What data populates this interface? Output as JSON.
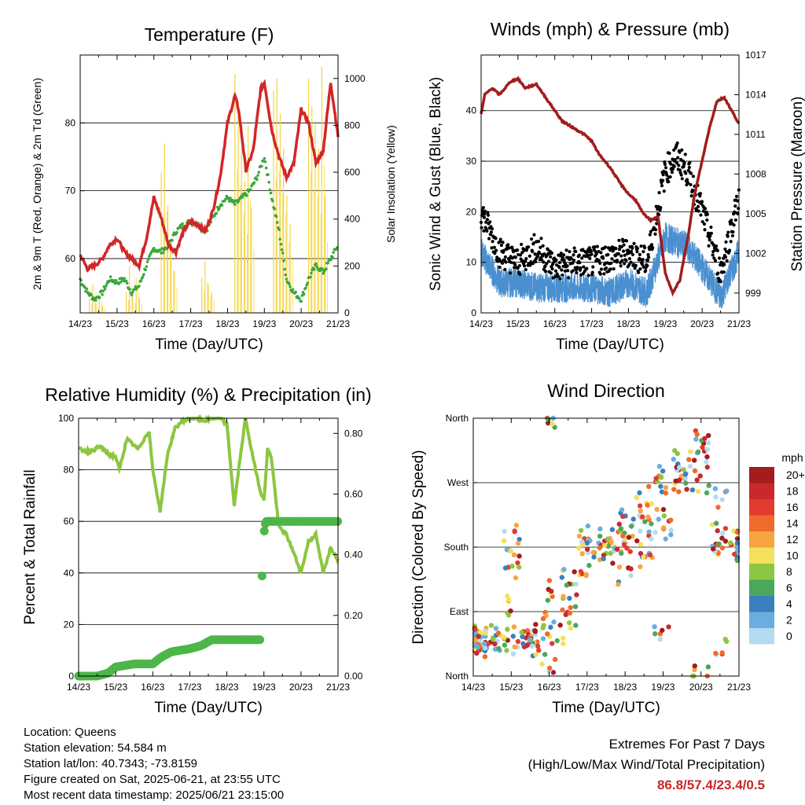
{
  "chart_data": [
    {
      "type": "line",
      "title": "Temperature (F)",
      "xlabel": "Time (Day/UTC)",
      "ylabel_left": "2m & 9m T (Red, Orange) & 2m Td (Green)",
      "ylabel_right": "Solar Insolation (Yellow)",
      "x_ticks": [
        "14/23",
        "15/23",
        "16/23",
        "17/23",
        "18/23",
        "19/23",
        "20/23",
        "21/23"
      ],
      "ylim_left": [
        52,
        90
      ],
      "y_ticks_left": [
        60,
        70,
        80
      ],
      "ylim_right": [
        0,
        1100
      ],
      "y_ticks_right": [
        0,
        200,
        400,
        600,
        800,
        1000
      ],
      "grid": true,
      "colors": {
        "temp": "#d32626",
        "dewpoint": "#3aa83a",
        "solar": "#f5d442"
      },
      "series": [
        {
          "name": "2m T",
          "axis": "left",
          "x": [
            0,
            0.2,
            0.4,
            0.6,
            0.8,
            1.0,
            1.2,
            1.4,
            1.6,
            1.8,
            2.0,
            2.2,
            2.4,
            2.6,
            2.8,
            3.0,
            3.2,
            3.4,
            3.6,
            3.8,
            4.0,
            4.2,
            4.3,
            4.5,
            4.7,
            4.9,
            5.0,
            5.2,
            5.4,
            5.6,
            5.8,
            6.0,
            6.2,
            6.4,
            6.6,
            6.8,
            7.0
          ],
          "values": [
            60.5,
            58.5,
            59,
            60,
            62,
            63,
            61,
            60,
            59,
            63,
            69,
            66,
            62,
            61,
            64,
            65.5,
            65,
            64,
            67,
            72,
            80,
            84,
            82,
            73,
            76,
            85,
            86,
            79,
            75,
            72,
            74,
            82,
            80,
            74,
            76,
            86,
            78
          ]
        },
        {
          "name": "2m Td",
          "axis": "left",
          "x": [
            0,
            0.2,
            0.4,
            0.6,
            0.8,
            1.0,
            1.2,
            1.4,
            1.6,
            1.8,
            2.0,
            2.2,
            2.4,
            2.6,
            2.8,
            3.0,
            3.2,
            3.4,
            3.6,
            3.8,
            4.0,
            4.2,
            4.4,
            4.6,
            4.8,
            5.0,
            5.2,
            5.4,
            5.6,
            5.8,
            6.0,
            6.2,
            6.4,
            6.6,
            6.8,
            7.0
          ],
          "values": [
            57,
            55,
            54,
            55,
            57,
            56.5,
            57,
            55,
            56,
            59,
            61.5,
            61,
            62,
            64,
            65,
            65.5,
            65,
            64,
            66,
            68,
            69,
            68,
            69,
            70,
            72,
            75,
            69,
            64,
            57,
            55,
            54,
            57,
            59,
            58,
            60,
            62
          ]
        },
        {
          "name": "Solar Insolation",
          "axis": "right",
          "type": "bars",
          "days": [
            {
              "x": 0.25,
              "values": [
                60,
                120,
                40,
                80,
                30
              ]
            },
            {
              "x": 1.25,
              "values": [
                90,
                200,
                70,
                150,
                60
              ]
            },
            {
              "x": 2.2,
              "values": [
                600,
                720,
                460,
                300,
                180
              ]
            },
            {
              "x": 3.3,
              "values": [
                150,
                220,
                120,
                90
              ]
            },
            {
              "x": 4.2,
              "values": [
                1020,
                900,
                700,
                560,
                800,
                450
              ]
            },
            {
              "x": 5.25,
              "values": [
                950,
                1000,
                850,
                700,
                500,
                380
              ]
            },
            {
              "x": 6.2,
              "values": [
                1000,
                880,
                820,
                700,
                1050,
                500
              ]
            }
          ]
        }
      ]
    },
    {
      "type": "line",
      "title": "Winds (mph) & Pressure (mb)",
      "xlabel": "Time (Day/UTC)",
      "ylabel_left": "Sonic Wind & Gust (Blue, Black)",
      "ylabel_right": "Station Pressure (Maroon)",
      "x_ticks": [
        "14/23",
        "15/23",
        "16/23",
        "17/23",
        "18/23",
        "19/23",
        "20/23",
        "21/23"
      ],
      "ylim_left": [
        0,
        51
      ],
      "y_ticks_left": [
        0,
        10,
        20,
        30,
        40
      ],
      "ylim_right": [
        997.5,
        1017
      ],
      "y_ticks_right": [
        999,
        1002,
        1005,
        1008,
        1011,
        1014,
        1017
      ],
      "grid": true,
      "colors": {
        "wind": "#4a90d0",
        "gust": "#000000",
        "pressure": "#a11d1d"
      },
      "series": [
        {
          "name": "Station Pressure",
          "axis": "right",
          "x": [
            0,
            0.1,
            0.3,
            0.5,
            0.8,
            1.0,
            1.2,
            1.5,
            1.7,
            2.0,
            2.2,
            2.5,
            2.8,
            3.0,
            3.2,
            3.5,
            3.8,
            4.0,
            4.2,
            4.4,
            4.6,
            4.8,
            5.0,
            5.2,
            5.4,
            5.6,
            5.8,
            6.0,
            6.2,
            6.4,
            6.6,
            6.8,
            6.9,
            7.0
          ],
          "values": [
            1012.5,
            1014,
            1014.5,
            1014,
            1015,
            1015.2,
            1014.5,
            1014.8,
            1014,
            1012.8,
            1012,
            1011.5,
            1011,
            1010.5,
            1009.5,
            1008.5,
            1007.2,
            1006.5,
            1006,
            1005,
            1004.5,
            1004.8,
            1000.5,
            999,
            1000,
            1003,
            1006.5,
            1009,
            1011.5,
            1013.5,
            1013.8,
            1012.8,
            1012.3,
            1011.8
          ]
        },
        {
          "name": "Sonic Wind",
          "axis": "left",
          "x": [
            0,
            0.5,
            1.0,
            1.5,
            2.0,
            2.5,
            3.0,
            3.5,
            4.0,
            4.5,
            5.0,
            5.3,
            5.6,
            6.0,
            6.5,
            7.0
          ],
          "values": [
            12,
            6,
            6,
            5,
            5,
            5,
            5,
            4,
            6,
            4,
            15,
            14,
            13,
            9,
            3,
            12
          ]
        },
        {
          "name": "Gust",
          "axis": "left",
          "x": [
            0,
            0.5,
            1.0,
            1.5,
            2.0,
            2.5,
            3.0,
            3.5,
            4.0,
            4.5,
            5.0,
            5.3,
            5.6,
            6.0,
            6.5,
            7.0
          ],
          "values": [
            20,
            12,
            10,
            13,
            9,
            10,
            10,
            11,
            12,
            10,
            28,
            31,
            28,
            20,
            8,
            23
          ]
        }
      ]
    },
    {
      "type": "line",
      "title": "Relative Humidity (%) & Precipitation (in)",
      "xlabel": "Time (Day/UTC)",
      "ylabel_left": "Percent & Total Rainfall",
      "x_ticks": [
        "14/23",
        "15/23",
        "16/23",
        "17/23",
        "18/23",
        "19/23",
        "20/23",
        "21/23"
      ],
      "ylim_left": [
        0,
        100
      ],
      "y_ticks_left": [
        0,
        20,
        40,
        60,
        80,
        100
      ],
      "ylim_right": [
        0,
        0.85
      ],
      "y_ticks_right": [
        "0.00",
        "0.20",
        "0.40",
        "0.60",
        "0.80"
      ],
      "grid": true,
      "colors": {
        "rh": "#8cc63f",
        "precip": "#4cb648"
      },
      "series": [
        {
          "name": "Relative Humidity",
          "axis": "left",
          "x": [
            0,
            0.3,
            0.6,
            0.8,
            1.0,
            1.1,
            1.3,
            1.6,
            1.9,
            2.0,
            2.2,
            2.4,
            2.6,
            2.8,
            3.0,
            3.2,
            3.4,
            3.6,
            3.8,
            4.0,
            4.2,
            4.3,
            4.5,
            4.7,
            4.9,
            5.0,
            5.1,
            5.2,
            5.4,
            5.6,
            5.8,
            6.0,
            6.2,
            6.4,
            6.6,
            6.8,
            7.0
          ],
          "values": [
            88,
            87,
            89,
            86,
            85,
            80,
            92,
            88,
            95,
            80,
            64,
            86,
            96,
            99,
            100,
            100,
            99,
            100,
            100,
            98,
            66,
            78,
            100,
            85,
            72,
            68,
            88,
            85,
            58,
            55,
            48,
            40,
            52,
            55,
            40,
            50,
            45
          ]
        },
        {
          "name": "Total Rainfall",
          "axis": "right",
          "x": [
            0,
            0.5,
            0.8,
            1.0,
            1.5,
            2.0,
            2.2,
            2.5,
            3.0,
            3.3,
            3.6,
            4.0,
            4.2,
            4.5,
            4.9,
            4.92,
            5.0,
            5.05,
            5.4,
            6.0,
            7.0
          ],
          "values": [
            0,
            0,
            0.01,
            0.03,
            0.04,
            0.04,
            0.06,
            0.08,
            0.09,
            0.1,
            0.12,
            0.12,
            0.12,
            0.12,
            0.12,
            0.33,
            0.47,
            0.51,
            0.51,
            0.51,
            0.51
          ]
        }
      ]
    },
    {
      "type": "scatter",
      "title": "Wind Direction",
      "xlabel": "Time (Day/UTC)",
      "ylabel_left": "Direction (Colored By Speed)",
      "x_ticks": [
        "14/23",
        "15/23",
        "16/23",
        "17/23",
        "18/23",
        "19/23",
        "20/23",
        "21/23"
      ],
      "y_ticks_left": [
        "North",
        "East",
        "South",
        "West",
        "North"
      ],
      "ylim_left": [
        0,
        360
      ],
      "grid": true,
      "colorbar": {
        "title": "mph",
        "labels": [
          "20+",
          "18",
          "16",
          "14",
          "12",
          "10",
          "8",
          "6",
          "4",
          "2",
          "0"
        ],
        "colors": [
          "#a51c1c",
          "#c9282c",
          "#e23c2e",
          "#f06a2c",
          "#f7a540",
          "#f4e05a",
          "#8dc642",
          "#4aa85c",
          "#3a80c0",
          "#6aaee0",
          "#b3dbf2"
        ]
      },
      "points_by_day": [
        {
          "x": 0.0,
          "dirs": [
            50,
            55,
            60,
            45,
            50,
            48,
            52
          ]
        },
        {
          "x": 0.5,
          "dirs": [
            50,
            45,
            55,
            60,
            40
          ]
        },
        {
          "x": 1.0,
          "dirs": [
            40,
            60,
            100,
            150,
            180,
            200
          ]
        },
        {
          "x": 1.5,
          "dirs": [
            50,
            55,
            45,
            60,
            40
          ]
        },
        {
          "x": 2.0,
          "dirs": [
            80,
            120,
            60,
            20,
            360
          ]
        },
        {
          "x": 2.5,
          "dirs": [
            60,
            90,
            120,
            140
          ]
        },
        {
          "x": 3.0,
          "dirs": [
            150,
            170,
            180,
            200
          ]
        },
        {
          "x": 3.5,
          "dirs": [
            180,
            190,
            200,
            170
          ]
        },
        {
          "x": 4.0,
          "dirs": [
            190,
            200,
            180,
            220,
            140
          ]
        },
        {
          "x": 4.5,
          "dirs": [
            210,
            230,
            250,
            180,
            160
          ]
        },
        {
          "x": 5.0,
          "dirs": [
            200,
            230,
            260,
            290,
            60
          ]
        },
        {
          "x": 5.5,
          "dirs": [
            280,
            300,
            290,
            270
          ]
        },
        {
          "x": 6.0,
          "dirs": [
            270,
            300,
            320,
            340,
            0
          ]
        },
        {
          "x": 6.5,
          "dirs": [
            250,
            200,
            180,
            175,
            40
          ]
        },
        {
          "x": 7.0,
          "dirs": [
            180,
            190,
            175
          ]
        }
      ]
    }
  ],
  "info": {
    "location": "Location: Queens",
    "elevation": "Station elevation: 54.584 m",
    "latlon": "Station lat/lon: 40.7343; -73.8159",
    "created": "Figure created on Sat, 2025-06-21, at 23:55 UTC",
    "recent": "Most recent data timestamp: 2025/06/21 23:15:00"
  },
  "extremes": {
    "title": "Extremes For Past 7 Days",
    "subtitle": "(High/Low/Max Wind/Total Precipitation)",
    "values": "86.8/57.4/23.4/0.5"
  }
}
